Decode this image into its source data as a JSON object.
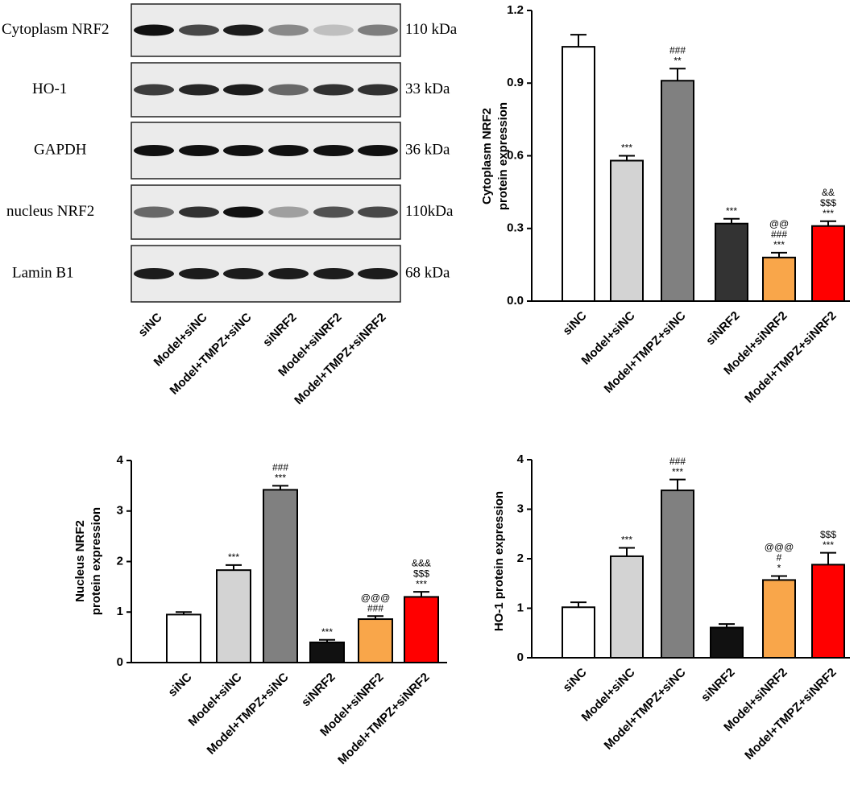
{
  "blot": {
    "rows": [
      {
        "label": "Cytoplasm NRF2",
        "size": "110 kDa"
      },
      {
        "label": "HO-1",
        "size": "33 kDa"
      },
      {
        "label": "GAPDH",
        "size": "36 kDa"
      },
      {
        "label": "nucleus NRF2",
        "size": "110kDa"
      },
      {
        "label": "Lamin B1",
        "size": "68 kDa"
      }
    ],
    "lanes": [
      "siNC",
      "Model+siNC",
      "Model+TMPZ+siNC",
      "siNRF2",
      "Model+siNRF2",
      "Model+TMPZ+siNRF2"
    ]
  },
  "chart_data": [
    {
      "type": "bar",
      "ylabel": [
        "Cytoplasm NRF2",
        "protein expression"
      ],
      "categories": [
        "siNC",
        "Model+siNC",
        "Model+TMPZ+siNC",
        "siNRF2",
        "Model+siNRF2",
        "Model+TMPZ+siNRF2"
      ],
      "values": [
        1.05,
        0.58,
        0.91,
        0.32,
        0.18,
        0.31
      ],
      "errors": [
        0.05,
        0.02,
        0.05,
        0.02,
        0.02,
        0.02
      ],
      "colors": [
        "#ffffff",
        "#d3d3d3",
        "#808080",
        "#333333",
        "#f9a64a",
        "#ff0000"
      ],
      "significance": [
        [],
        [
          "***"
        ],
        [
          "###",
          "**"
        ],
        [
          "***"
        ],
        [
          "@@",
          "###",
          "***"
        ],
        [
          "&&",
          "$$$",
          "***"
        ]
      ],
      "ylim": [
        0,
        1.2
      ],
      "yticks": [
        {
          "value": 0,
          "label": "0.0"
        },
        0.3,
        0.6,
        0.9,
        1.2
      ]
    },
    {
      "type": "bar",
      "ylabel": [
        "Nucleus NRF2",
        "protein expression"
      ],
      "categories": [
        "siNC",
        "Model+siNC",
        "Model+TMPZ+siNC",
        "siNRF2",
        "Model+siNRF2",
        "Model+TMPZ+siNRF2"
      ],
      "values": [
        0.95,
        1.83,
        3.42,
        0.4,
        0.86,
        1.3
      ],
      "errors": [
        0.05,
        0.1,
        0.08,
        0.05,
        0.06,
        0.1
      ],
      "colors": [
        "#ffffff",
        "#d3d3d3",
        "#808080",
        "#111111",
        "#f9a64a",
        "#ff0000"
      ],
      "significance": [
        [],
        [
          "***"
        ],
        [
          "###",
          "***"
        ],
        [
          "***"
        ],
        [
          "@@@",
          "###"
        ],
        [
          "&&&",
          "$$$",
          "***"
        ]
      ],
      "ylim": [
        0,
        4
      ],
      "yticks": [
        0,
        1,
        2,
        3,
        4
      ]
    },
    {
      "type": "bar",
      "ylabel": [
        "HO-1 protein expression"
      ],
      "categories": [
        "siNC",
        "Model+siNC",
        "Model+TMPZ+siNC",
        "siNRF2",
        "Model+siNRF2",
        "Model+TMPZ+siNRF2"
      ],
      "values": [
        1.02,
        2.05,
        3.38,
        0.61,
        1.57,
        1.88
      ],
      "errors": [
        0.1,
        0.17,
        0.22,
        0.07,
        0.08,
        0.24
      ],
      "colors": [
        "#ffffff",
        "#d3d3d3",
        "#808080",
        "#111111",
        "#f9a64a",
        "#ff0000"
      ],
      "significance": [
        [],
        [
          "***"
        ],
        [
          "###",
          "***"
        ],
        [],
        [
          "@@@",
          "#",
          "*"
        ],
        [
          "$$$",
          "***"
        ]
      ],
      "ylim": [
        0,
        4
      ],
      "yticks": [
        0,
        1,
        2,
        3,
        4
      ]
    }
  ]
}
